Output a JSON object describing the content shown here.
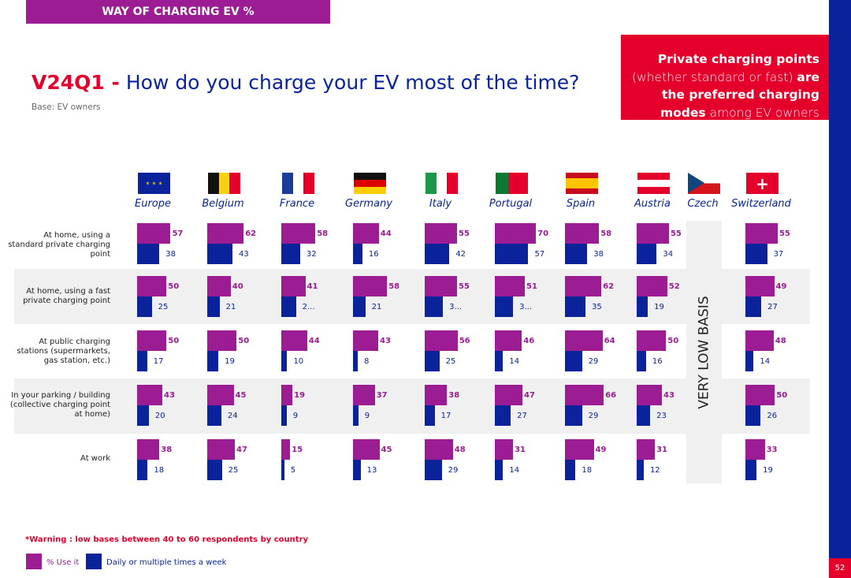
{
  "header": {
    "section": "WAY OF CHARGING EV %",
    "page_number": "52"
  },
  "title": {
    "code": "V24Q1 -",
    "question": "How do you charge your EV most of the time?",
    "base": "Base: EV owners"
  },
  "callout": {
    "b1": "Private charging points",
    "l1": " (whether standard or fast) ",
    "b2": "are the preferred charging modes",
    "l2": " among EV owners"
  },
  "warning": "*Warning : low bases between 40 to 60 respondents by country",
  "czech_note": "VERY LOW BASIS",
  "colors": {
    "use_it": "#9b1c93",
    "daily": "#0a239b",
    "accent": "#e4002b"
  },
  "chart_data": {
    "type": "bar",
    "categories": [
      "Europe",
      "Belgium",
      "France",
      "Germany",
      "Italy",
      "Portugal",
      "Spain",
      "Austria",
      "Czech",
      "Switzerland"
    ],
    "rows": [
      "At home, using a standard private charging point",
      "At home, using a fast private charging point",
      "At public charging stations (supermarkets, gas station, etc.)",
      "In your parking / building (collective charging point at home)",
      "At work"
    ],
    "series": [
      {
        "name": "% Use it",
        "values": [
          [
            57,
            50,
            50,
            43,
            38
          ],
          [
            62,
            40,
            50,
            45,
            47
          ],
          [
            58,
            41,
            44,
            19,
            15
          ],
          [
            44,
            58,
            43,
            37,
            45
          ],
          [
            55,
            55,
            56,
            38,
            48
          ],
          [
            70,
            51,
            46,
            47,
            31
          ],
          [
            58,
            62,
            64,
            66,
            49
          ],
          [
            55,
            52,
            50,
            43,
            31
          ],
          [
            null,
            null,
            null,
            null,
            null
          ],
          [
            55,
            49,
            48,
            50,
            33
          ]
        ]
      },
      {
        "name": "Daily or multiple times a week",
        "values": [
          [
            38,
            25,
            17,
            20,
            18
          ],
          [
            43,
            21,
            19,
            24,
            25
          ],
          [
            32,
            null,
            10,
            9,
            5
          ],
          [
            16,
            21,
            8,
            9,
            13
          ],
          [
            42,
            null,
            25,
            17,
            29
          ],
          [
            57,
            null,
            14,
            27,
            14
          ],
          [
            38,
            35,
            29,
            29,
            18
          ],
          [
            34,
            19,
            16,
            23,
            12
          ],
          [
            null,
            null,
            null,
            null,
            null
          ],
          [
            37,
            27,
            14,
            26,
            19
          ]
        ]
      }
    ],
    "truncated_labels": {
      "France|1": "2...",
      "Italy|1": "3...",
      "Portugal|1": "3..."
    },
    "legend": "bottom-left"
  }
}
